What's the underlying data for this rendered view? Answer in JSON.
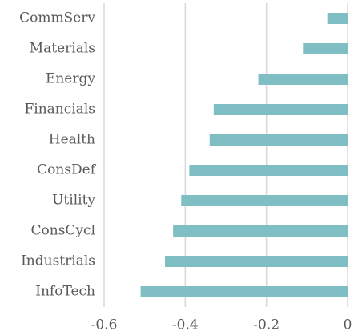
{
  "chart_data": {
    "type": "barh",
    "categories": [
      "CommServ",
      "Materials",
      "Energy",
      "Financials",
      "Health",
      "ConsDef",
      "Utility",
      "ConsCycl",
      "Industrials",
      "InfoTech"
    ],
    "values": [
      -0.05,
      -0.11,
      -0.22,
      -0.33,
      -0.34,
      -0.39,
      -0.41,
      -0.43,
      -0.45,
      -0.51
    ],
    "color": "#7fbfc4",
    "xlim": [
      -0.6,
      0
    ],
    "xticks": [
      -0.6,
      -0.4,
      -0.2,
      0
    ],
    "grid": true
  }
}
